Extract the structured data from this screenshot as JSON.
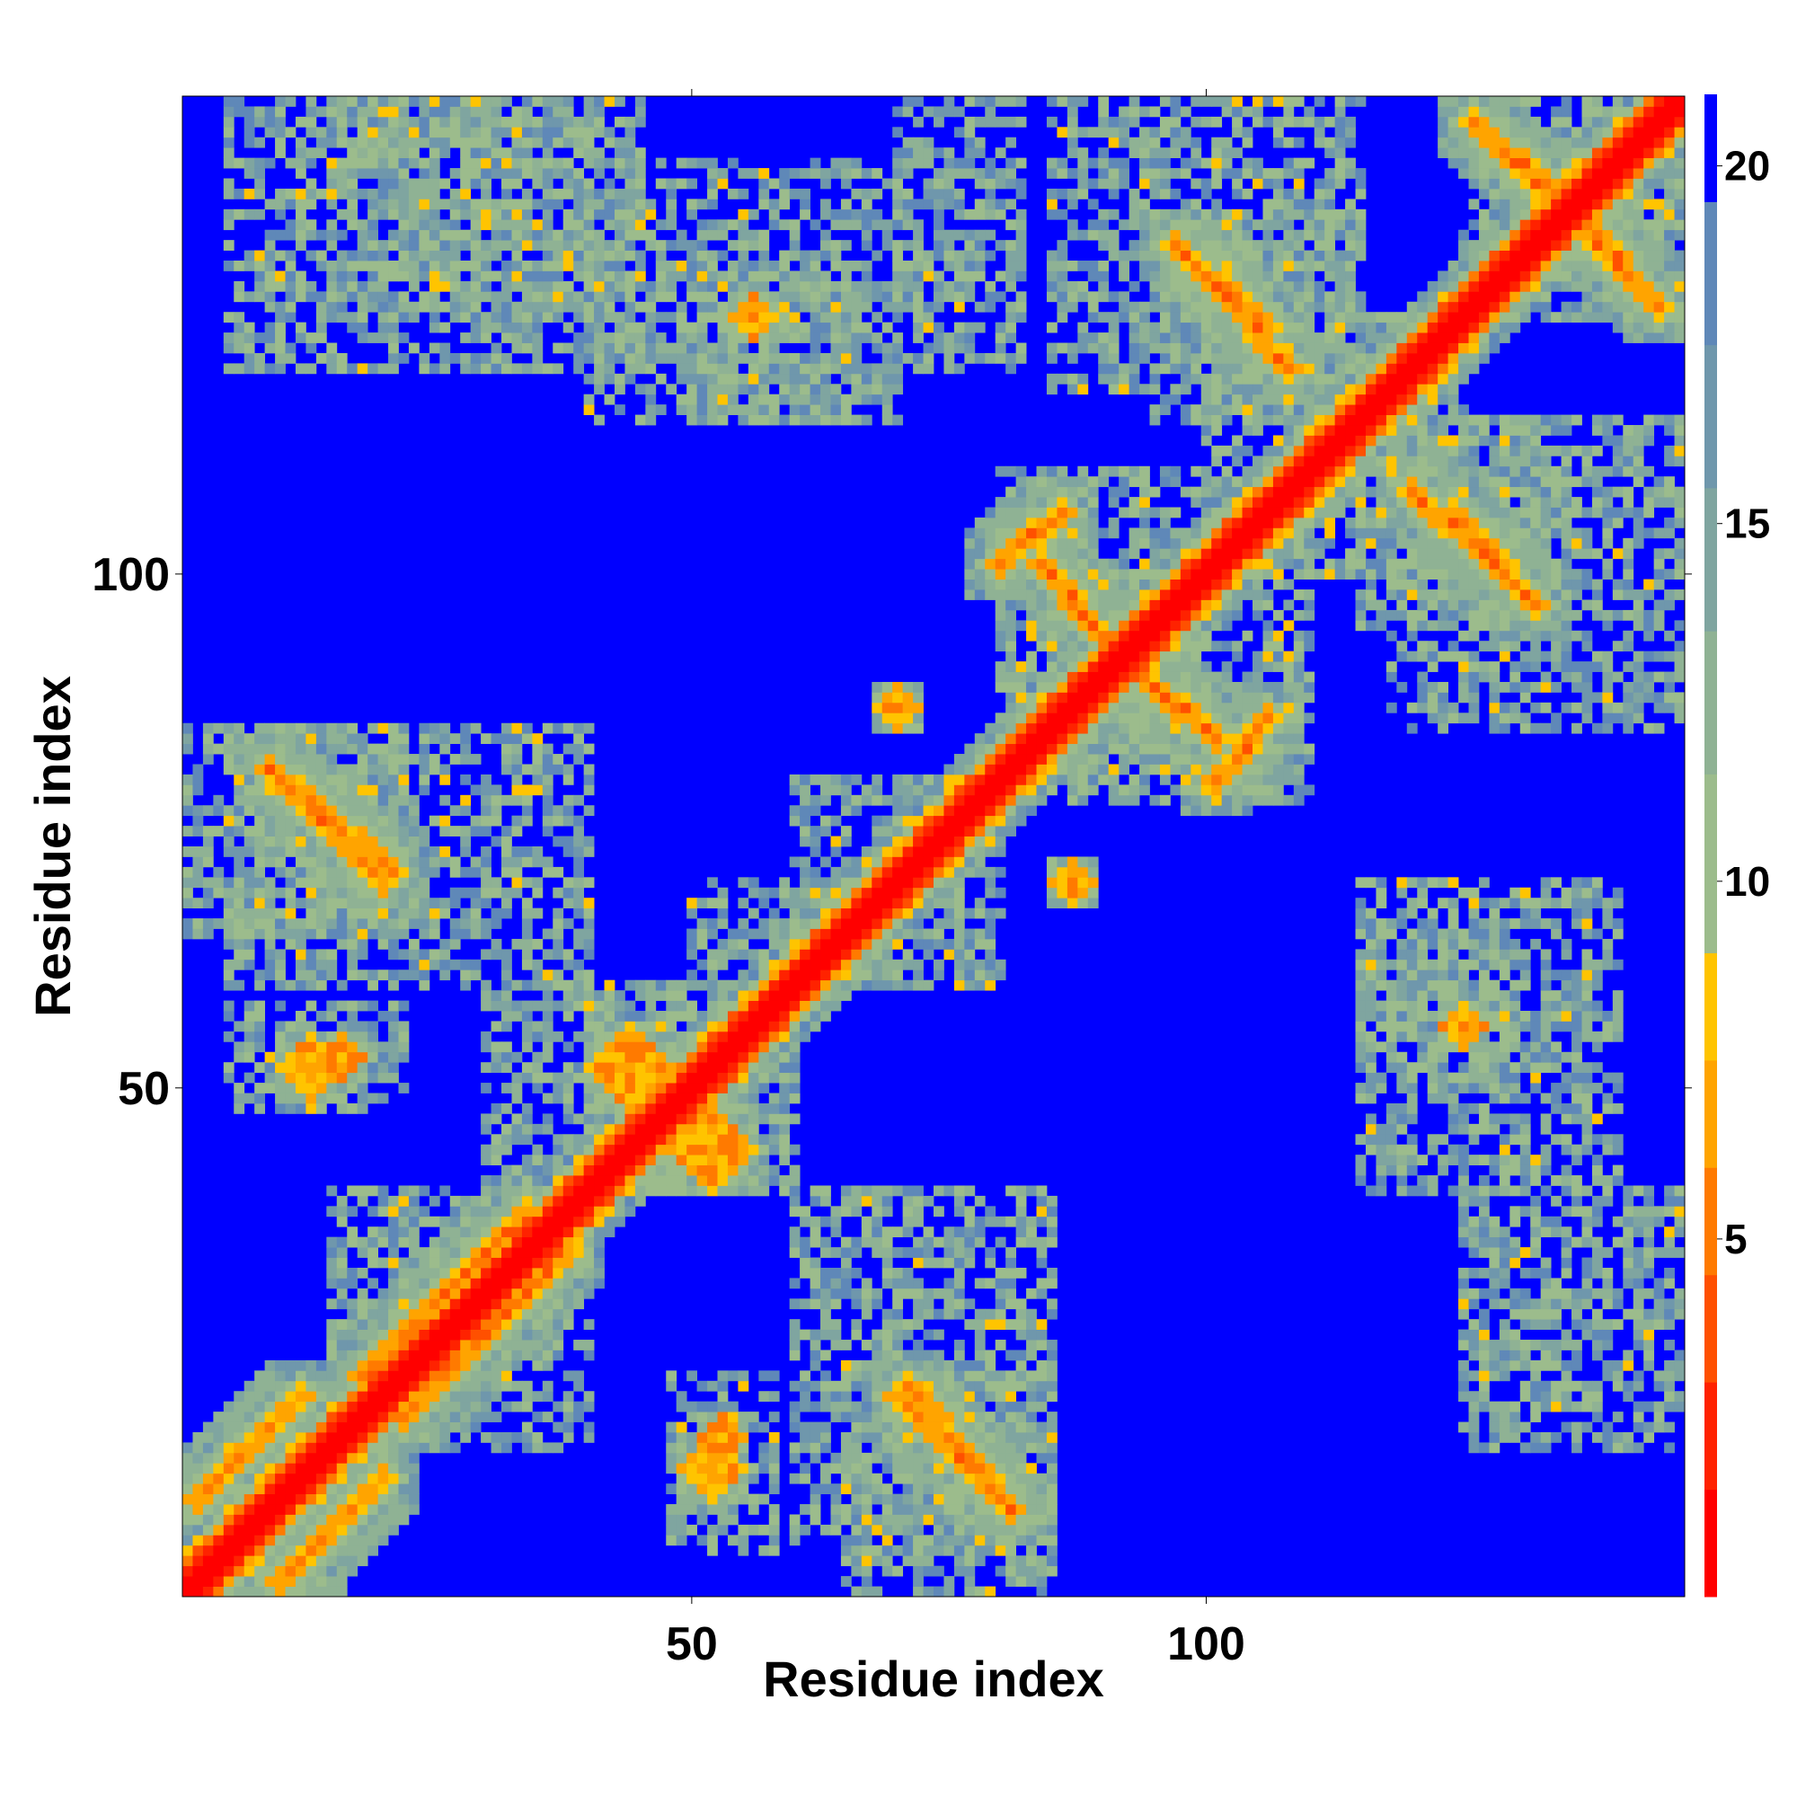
{
  "chart_data": {
    "type": "heatmap",
    "title": "",
    "xlabel": "Residue index",
    "ylabel": "Residue index",
    "n_residues": 146,
    "xlim": [
      1,
      146
    ],
    "ylim": [
      1,
      146
    ],
    "x_ticks": [
      50,
      100
    ],
    "y_ticks": [
      50,
      100
    ],
    "colorbar": {
      "ticks": [
        5,
        10,
        15,
        20
      ],
      "range": [
        0,
        21
      ],
      "levels": [
        {
          "max": 1.5,
          "color": "#ff0000"
        },
        {
          "max": 3.0,
          "color": "#ff2200"
        },
        {
          "max": 4.5,
          "color": "#ff5000"
        },
        {
          "max": 6.0,
          "color": "#ff7a00"
        },
        {
          "max": 7.5,
          "color": "#ffa400"
        },
        {
          "max": 9.0,
          "color": "#ffc400"
        },
        {
          "max": 11.5,
          "color": "#9cbc8c"
        },
        {
          "max": 13.5,
          "color": "#8fb294"
        },
        {
          "max": 15.5,
          "color": "#7fa5a0"
        },
        {
          "max": 17.5,
          "color": "#6f97ac"
        },
        {
          "max": 19.5,
          "color": "#5f88b8"
        },
        {
          "max": 21.0,
          "color": "#0000ff"
        }
      ]
    },
    "background_color": "#0000ff",
    "contact_features": [
      {
        "kind": "diagonal",
        "from": 1,
        "to": 146
      },
      {
        "kind": "antiparallel",
        "i_start": 9,
        "i_end": 21,
        "j_start": 81,
        "j_end": 71
      },
      {
        "kind": "antiparallel",
        "i_start": 70,
        "i_end": 80,
        "j_start": 20,
        "j_end": 10
      },
      {
        "kind": "antiparallel",
        "i_start": 101,
        "i_end": 108,
        "j_start": 128,
        "j_end": 120
      },
      {
        "kind": "antiparallel",
        "i_start": 126,
        "i_end": 140,
        "j_start": 144,
        "j_end": 131
      },
      {
        "kind": "antiparallel",
        "i_start": 124,
        "i_end": 132,
        "j_start": 106,
        "j_end": 97
      },
      {
        "kind": "antiparallel",
        "i_start": 84,
        "i_end": 90,
        "j_start": 101,
        "j_end": 94
      },
      {
        "kind": "antiparallel",
        "i_start": 101,
        "i_end": 106,
        "j_start": 80,
        "j_end": 86
      },
      {
        "kind": "parallel",
        "i_start": 2,
        "i_end": 12,
        "j_start": 10,
        "j_end": 20
      },
      {
        "kind": "parallel",
        "i_start": 18,
        "i_end": 34,
        "j_start": 22,
        "j_end": 38
      },
      {
        "kind": "blob",
        "ci": 52,
        "cj": 13,
        "r": 3
      },
      {
        "kind": "blob",
        "ci": 16,
        "cj": 53,
        "r": 2
      },
      {
        "kind": "blob",
        "ci": 44,
        "cj": 52,
        "r": 4
      },
      {
        "kind": "blob",
        "ci": 56,
        "cj": 125,
        "r": 2
      },
      {
        "kind": "blob",
        "ci": 70,
        "cj": 87,
        "r": 2
      }
    ],
    "diffuse_regions": [
      {
        "i": [
          1,
          16
        ],
        "j": [
          1,
          16
        ]
      },
      {
        "i": [
          15,
          40
        ],
        "j": [
          15,
          40
        ]
      },
      {
        "i": [
          40,
          60
        ],
        "j": [
          40,
          60
        ]
      },
      {
        "i": [
          60,
          80
        ],
        "j": [
          60,
          80
        ]
      },
      {
        "i": [
          80,
          100
        ],
        "j": [
          80,
          100
        ]
      },
      {
        "i": [
          100,
          125
        ],
        "j": [
          100,
          125
        ]
      },
      {
        "i": [
          125,
          146
        ],
        "j": [
          125,
          146
        ]
      },
      {
        "i": [
          5,
          40
        ],
        "j": [
          60,
          85
        ]
      },
      {
        "i": [
          60,
          85
        ],
        "j": [
          5,
          40
        ]
      },
      {
        "i": [
          65,
          85
        ],
        "j": [
          1,
          22
        ]
      },
      {
        "i": [
          1,
          22
        ],
        "j": [
          65,
          85
        ]
      },
      {
        "i": [
          48,
          58
        ],
        "j": [
          5,
          22
        ]
      },
      {
        "i": [
          5,
          22
        ],
        "j": [
          48,
          58
        ]
      },
      {
        "i": [
          30,
          50
        ],
        "j": [
          40,
          60
        ]
      },
      {
        "i": [
          95,
          115
        ],
        "j": [
          115,
          135
        ]
      },
      {
        "i": [
          115,
          135
        ],
        "j": [
          95,
          115
        ]
      },
      {
        "i": [
          118,
          146
        ],
        "j": [
          85,
          115
        ]
      },
      {
        "i": [
          85,
          115
        ],
        "j": [
          118,
          146
        ]
      },
      {
        "i": [
          80,
          110
        ],
        "j": [
          78,
          110
        ]
      },
      {
        "i": [
          115,
          130
        ],
        "j": [
          50,
          66
        ]
      },
      {
        "i": [
          50,
          66
        ],
        "j": [
          115,
          130
        ]
      },
      {
        "i": [
          15,
          40
        ],
        "j": [
          125,
          146
        ]
      },
      {
        "i": [
          125,
          146
        ],
        "j": [
          15,
          40
        ]
      },
      {
        "i": [
          40,
          70
        ],
        "j": [
          115,
          140
        ]
      },
      {
        "i": [
          115,
          140
        ],
        "j": [
          40,
          70
        ]
      },
      {
        "i": [
          5,
          45
        ],
        "j": [
          120,
          146
        ]
      },
      {
        "i": [
          50,
          70
        ],
        "j": [
          60,
          70
        ]
      },
      {
        "i": [
          70,
          82
        ],
        "j": [
          120,
          146
        ]
      }
    ]
  }
}
